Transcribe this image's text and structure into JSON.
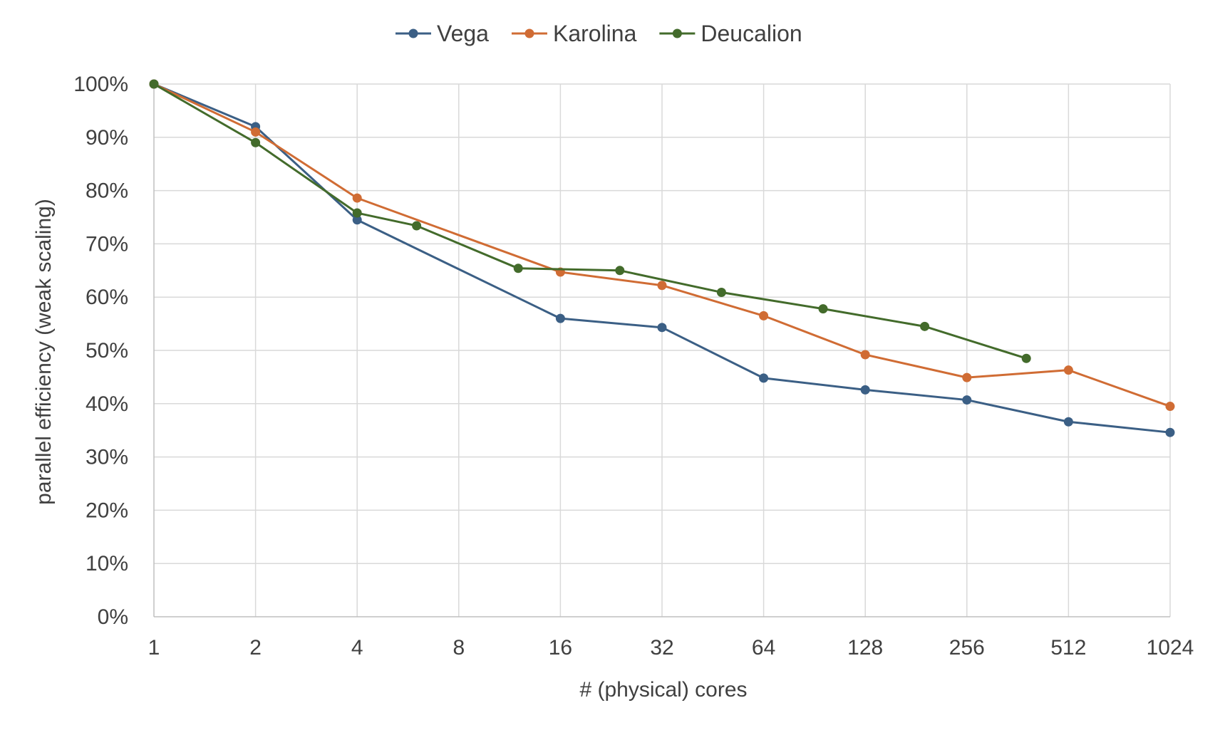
{
  "chart_data": {
    "type": "line",
    "xlabel": "# (physical) cores",
    "ylabel": "parallel efficiency (weak scaling)",
    "x_scale": "log2",
    "x_ticks": [
      "1",
      "2",
      "4",
      "8",
      "16",
      "32",
      "64",
      "128",
      "256",
      "512",
      "1024"
    ],
    "xlim": [
      1,
      1024
    ],
    "y_ticks": [
      "0%",
      "10%",
      "20%",
      "30%",
      "40%",
      "50%",
      "60%",
      "70%",
      "80%",
      "90%",
      "100%"
    ],
    "ylim": [
      0,
      100
    ],
    "y_unit": "%",
    "grid": true,
    "legend_position": "top-center",
    "series": [
      {
        "name": "Vega",
        "color": "#3b5f85",
        "x": [
          1,
          2,
          4,
          16,
          32,
          64,
          128,
          256,
          512,
          1024
        ],
        "y": [
          100,
          92,
          74.5,
          56,
          54.3,
          44.8,
          42.6,
          40.7,
          36.6,
          34.6
        ]
      },
      {
        "name": "Karolina",
        "color": "#d06c34",
        "x": [
          1,
          2,
          4,
          16,
          32,
          64,
          128,
          256,
          512,
          1024
        ],
        "y": [
          100,
          91,
          78.6,
          64.7,
          62.2,
          56.5,
          49.2,
          44.9,
          46.3,
          39.5
        ]
      },
      {
        "name": "Deucalion",
        "color": "#436b2b",
        "x": [
          1,
          2,
          4,
          6,
          12,
          24,
          48,
          96,
          192,
          384
        ],
        "y": [
          100,
          89,
          75.8,
          73.4,
          65.4,
          65,
          60.9,
          57.8,
          54.5,
          48.5
        ]
      }
    ]
  }
}
